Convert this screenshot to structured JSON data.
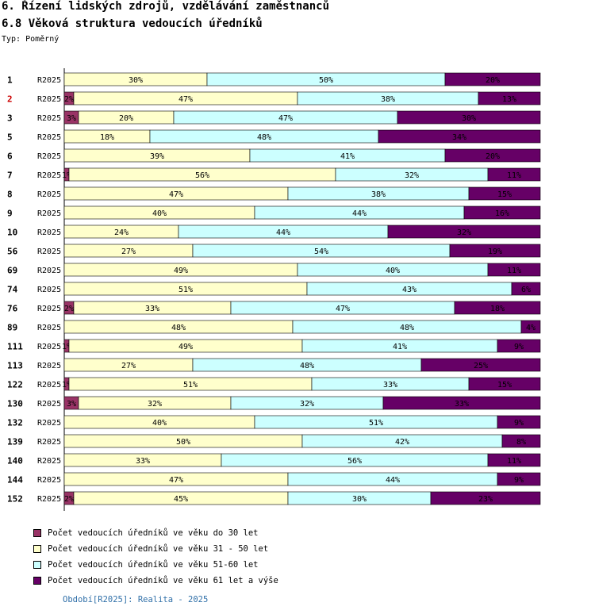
{
  "header": {
    "title": "6. Řízení lidských zdrojů, vzdělávání zaměstnanců",
    "subtitle": "6.8 Věková struktura vedoucích úředníků",
    "type_label": "Typ: Poměrný"
  },
  "chart_data": {
    "type": "bar",
    "stacked": true,
    "orientation": "horizontal",
    "normalized": true,
    "period_label": "R2025",
    "categories": [
      "1",
      "2",
      "3",
      "5",
      "6",
      "7",
      "8",
      "9",
      "10",
      "56",
      "69",
      "74",
      "76",
      "89",
      "111",
      "113",
      "122",
      "130",
      "132",
      "139",
      "140",
      "144",
      "152"
    ],
    "highlighted_category": "2",
    "highlight_color": "#cc0000",
    "series": [
      {
        "name": "Počet vedoucích úředníků ve věku do 30 let",
        "color": "#993366",
        "values": [
          0,
          2,
          3,
          0,
          0,
          1,
          0,
          0,
          0,
          0,
          0,
          0,
          2,
          0,
          1,
          0,
          1,
          3,
          0,
          0,
          0,
          0,
          2
        ]
      },
      {
        "name": "Počet vedoucích úředníků ve věku 31 - 50 let",
        "color": "#ffffcc",
        "values": [
          30,
          47,
          20,
          18,
          39,
          56,
          47,
          40,
          24,
          27,
          49,
          51,
          33,
          48,
          49,
          27,
          51,
          32,
          40,
          50,
          33,
          47,
          45
        ]
      },
      {
        "name": "Počet vedoucích úředníků ve věku 51-60 let",
        "color": "#ccffff",
        "values": [
          50,
          38,
          47,
          48,
          41,
          32,
          38,
          44,
          44,
          54,
          40,
          43,
          47,
          48,
          41,
          48,
          33,
          32,
          51,
          42,
          56,
          44,
          30
        ]
      },
      {
        "name": "Počet vedoucích úředníků ve věku 61 let a výše",
        "color": "#660066",
        "values": [
          20,
          13,
          30,
          34,
          20,
          11,
          15,
          16,
          32,
          19,
          11,
          6,
          18,
          4,
          9,
          25,
          15,
          33,
          9,
          8,
          11,
          9,
          23
        ]
      }
    ],
    "value_suffix": "%",
    "xlim": [
      0,
      100
    ]
  },
  "footer": {
    "period_note": "Období[R2025]: Realita - 2025"
  }
}
